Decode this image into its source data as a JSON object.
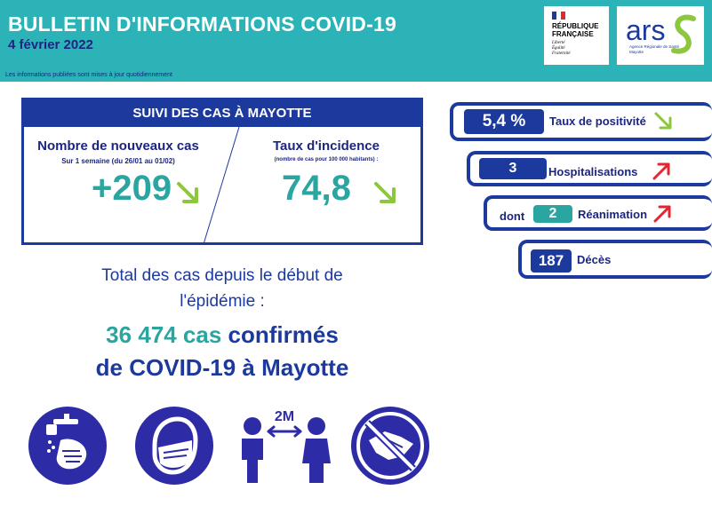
{
  "header": {
    "title": "BULLETIN D'INFORMATIONS COVID-19",
    "date": "4 février 2022",
    "note": "Les informations publiées sont mises à jour quotidiennement"
  },
  "logos": {
    "rf_line1": "RÉPUBLIQUE",
    "rf_line2": "FRANÇAISE",
    "rf_motto1": "Liberté",
    "rf_motto2": "Égalité",
    "rf_motto3": "Fraternité",
    "ars_name": "ars",
    "ars_sub": "Agence Régionale de Santé",
    "ars_region": "Mayotte"
  },
  "suivi": {
    "title": "SUIVI DES CAS À MAYOTTE",
    "new_cases": {
      "title": "Nombre de nouveaux cas",
      "subtitle": "Sur 1 semaine (du 26/01 au 01/02)",
      "value": "+209",
      "trend": "down"
    },
    "incidence": {
      "title": "Taux d'incidence",
      "subtitle": "(nombre de cas pour 100 000 habitants) :",
      "value": "74,8",
      "trend": "down"
    }
  },
  "stats": {
    "positivity": {
      "value": "5,4 %",
      "label": "Taux de positivité",
      "trend": "down"
    },
    "hospital": {
      "value": "3",
      "label": "Hospitalisations",
      "trend": "up"
    },
    "reanimation": {
      "prefix": "dont",
      "value": "2",
      "label": "Réanimation",
      "trend": "up"
    },
    "deaths": {
      "value": "187",
      "label": "Décès"
    }
  },
  "total": {
    "line1": "Total des cas depuis le début de",
    "line2": "l'épidémie :",
    "count": "36 474 cas",
    "confirmed": "confirmés",
    "line4": "de COVID-19 à Mayotte"
  },
  "distance_label": "2M",
  "colors": {
    "header_bg": "#2bb3b8",
    "navy": "#1c3a9e",
    "teal": "#2aa59f",
    "arrow_down": "#8dc63f",
    "arrow_up": "#e3262f"
  }
}
